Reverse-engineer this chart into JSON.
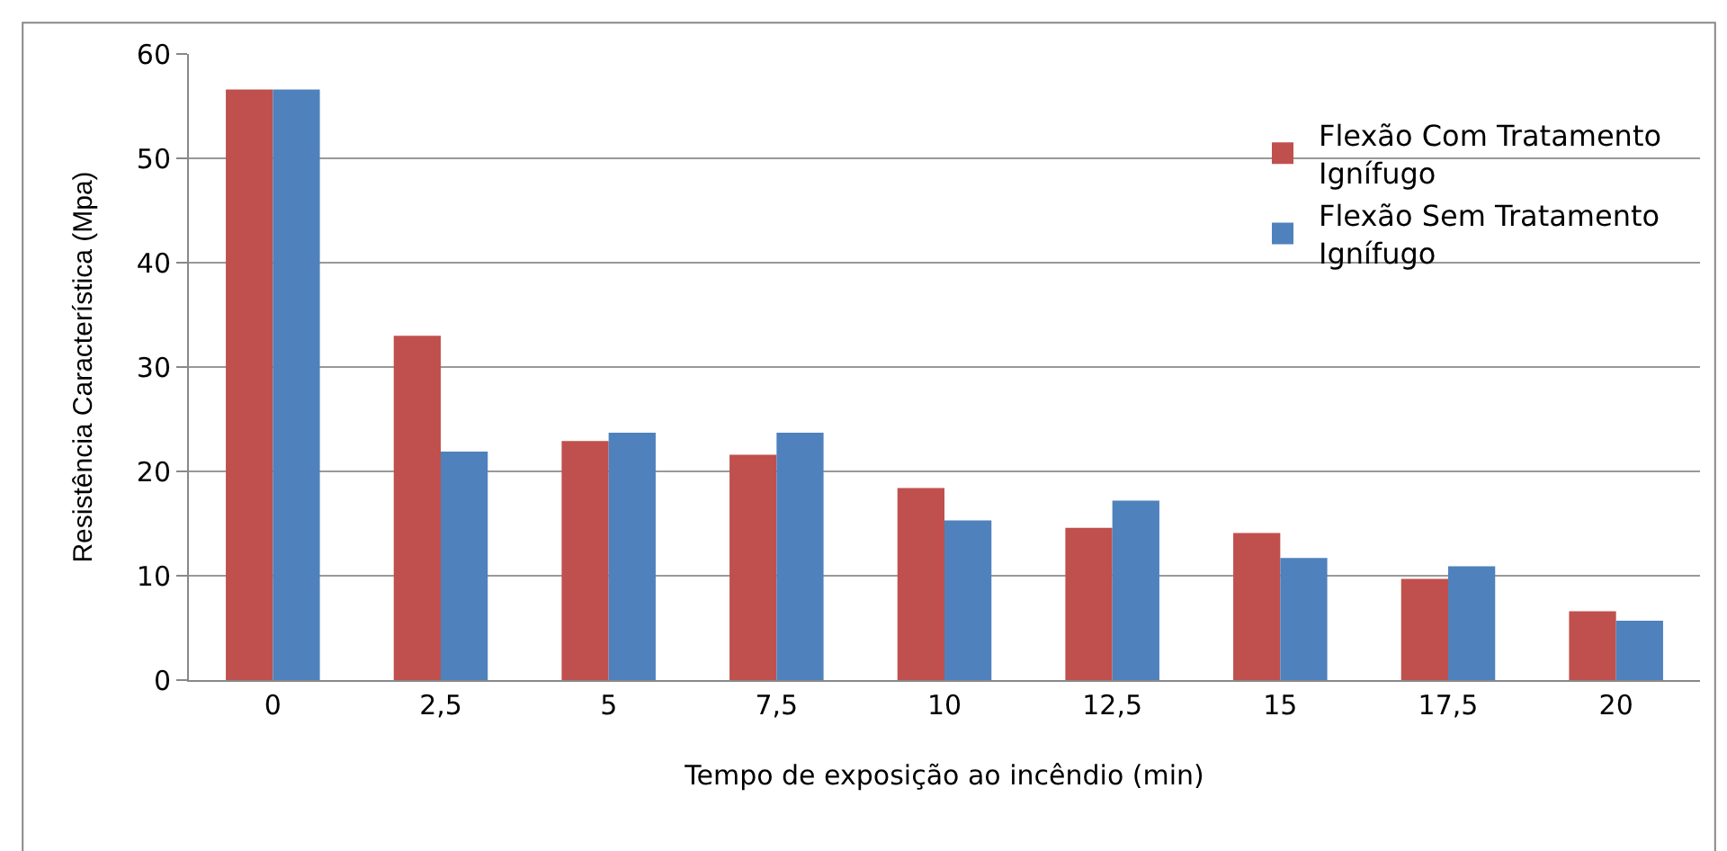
{
  "chart_data": {
    "type": "bar",
    "xlabel": "Tempo de exposição ao incêndio (min)",
    "ylabel": "Resistência Característica (Mpa)",
    "categories": [
      "0",
      "2,5",
      "5",
      "7,5",
      "10",
      "12,5",
      "15",
      "17,5",
      "20"
    ],
    "series": [
      {
        "name": "Flexão Com Tratamento Ignífugo",
        "color": "#c0504d",
        "values": [
          56.6,
          33.0,
          22.9,
          21.6,
          18.4,
          14.6,
          14.1,
          9.7,
          6.6
        ]
      },
      {
        "name": "Flexão Sem Tratamento Ignífugo",
        "color": "#4f81bd",
        "values": [
          56.6,
          21.9,
          23.7,
          23.7,
          15.3,
          17.2,
          11.7,
          10.9,
          5.7
        ]
      }
    ],
    "ylim": [
      0,
      60
    ],
    "yticks": [
      0,
      10,
      20,
      30,
      40,
      50,
      60
    ],
    "grid": "y",
    "legend": "top right"
  }
}
